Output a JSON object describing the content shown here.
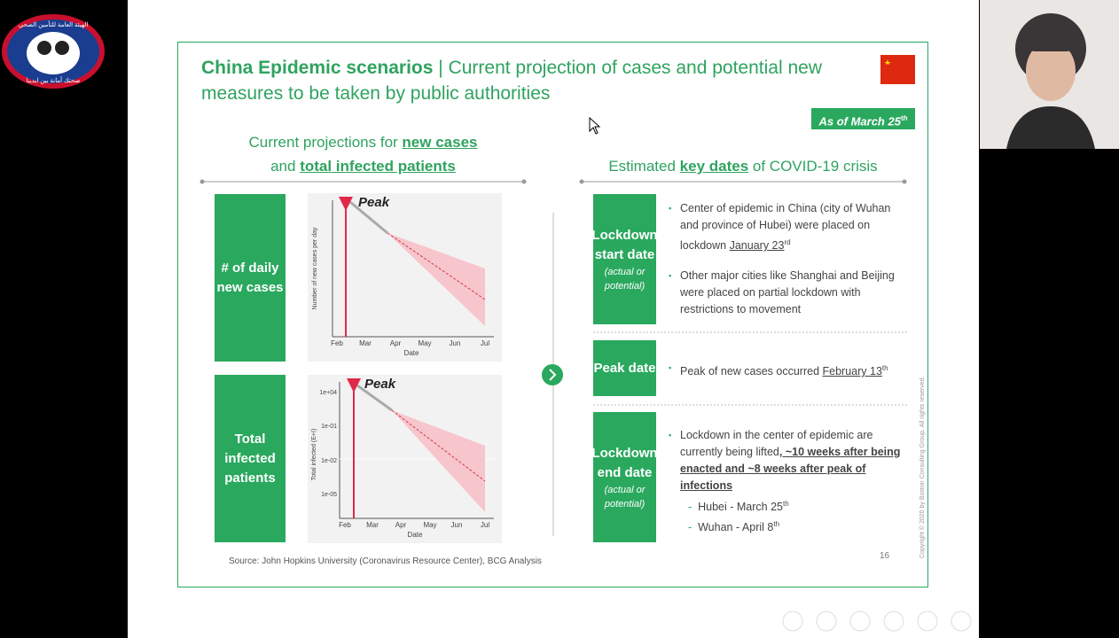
{
  "logo": {
    "top": "الهيئة العامة للتأمين الصحي",
    "bottom": "صحتك أمانة بين ايدينا"
  },
  "slide": {
    "title": {
      "accent": "China Epidemic scenarios",
      "text": "| Current projection of cases and potential new measures to be taken by public authorities"
    },
    "as_of": {
      "text": "As of March 25",
      "sup": "th"
    },
    "left_heading": {
      "line1": [
        "Current projections for",
        "new cases"
      ],
      "line2": [
        "and",
        "total infected patients"
      ]
    },
    "right_heading": [
      "Estimated",
      "key dates",
      "of COVID-19 crisis"
    ],
    "charts": [
      {
        "row_label": "# of daily new cases",
        "peak": "Peak",
        "y_label": "Number of new cases per day",
        "x_ticks": [
          "Feb",
          "Mar",
          "Apr",
          "May",
          "Jun",
          "Jul"
        ],
        "x_label": "Date"
      },
      {
        "row_label": "Total infected patients",
        "peak": "Peak",
        "y_label": "Total infected (E+I)",
        "y_ticks": [
          "1e+04",
          "1e-01",
          "1e-02",
          "1e-05"
        ],
        "x_ticks": [
          "Feb",
          "Mar",
          "Apr",
          "May",
          "Jun",
          "Jul"
        ],
        "x_label": "Date"
      }
    ],
    "key_dates": [
      {
        "label": "Lockdown start date",
        "note": "(actual or potential)",
        "bullets": [
          {
            "parts": [
              "Center of epidemic in China (city of Wuhan and province of Hubei) were placed on lockdown",
              "January 23"
            ],
            "sup": "rd"
          },
          {
            "parts": [
              "Other major cities like Shanghai and Beijing were placed on partial lockdown with restrictions to movement"
            ]
          }
        ]
      },
      {
        "label": "Peak date",
        "bullets": [
          {
            "parts": [
              "Peak of new cases occurred",
              "February 13"
            ],
            "sup": "th"
          }
        ]
      },
      {
        "label": "Lockdown end date",
        "note": "(actual or potential)",
        "bullets": [
          {
            "parts": [
              "Lockdown in the center of epidemic are currently being lifted",
              ", ~10 weeks after being enacted and ~8 weeks after peak of infections"
            ]
          }
        ],
        "sub": [
          {
            "text": "Hubei - March 25",
            "sup": "th"
          },
          {
            "text": "Wuhan  - April 8",
            "sup": "th"
          }
        ]
      }
    ],
    "source": "Source: John Hopkins University (Coronavirus Resource Center), BCG Analysis",
    "page_number": "16",
    "copyright": "Copyright © 2020 by Boston Consulting Group. All rights reserved."
  }
}
